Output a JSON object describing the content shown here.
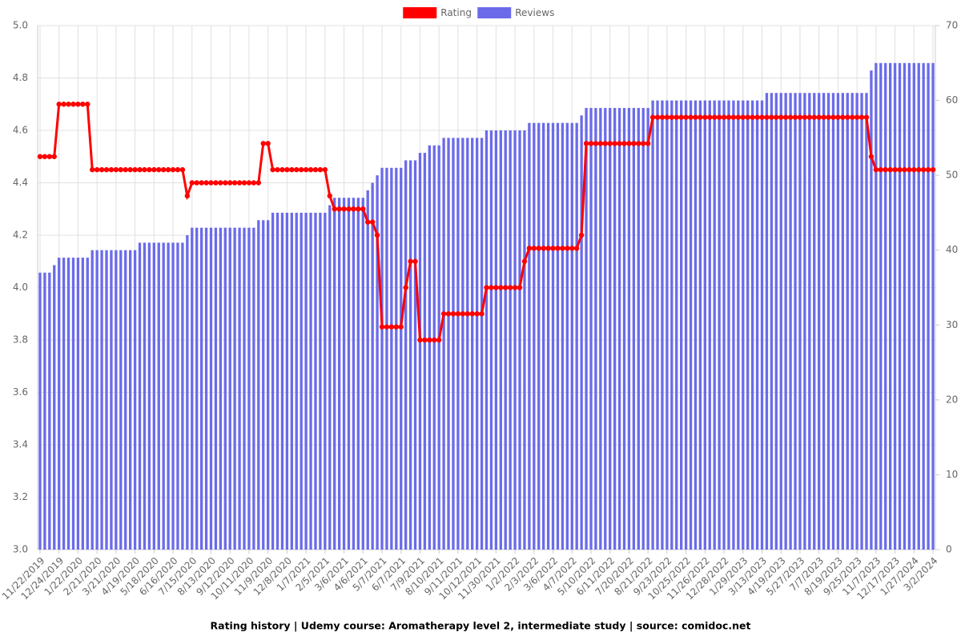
{
  "chart_data": {
    "type": "combo",
    "title": "Rating history | Udemy course: Aromatherapy level 2, intermediate study | source: comidoc.net",
    "legend": "top",
    "grid": true,
    "categories": [
      "11/22/2019",
      null,
      null,
      null,
      "12/24/2019",
      null,
      null,
      null,
      "1/22/2020",
      null,
      null,
      null,
      "2/21/2020",
      null,
      null,
      null,
      "3/21/2020",
      null,
      null,
      null,
      "4/19/2020",
      null,
      null,
      null,
      "5/18/2020",
      null,
      null,
      null,
      "6/16/2020",
      null,
      null,
      null,
      "7/15/2020",
      null,
      null,
      null,
      "8/13/2020",
      null,
      null,
      null,
      "9/12/2020",
      null,
      null,
      null,
      "10/11/2020",
      null,
      null,
      null,
      "11/9/2020",
      null,
      null,
      null,
      "12/8/2020",
      null,
      null,
      null,
      "1/7/2021",
      null,
      null,
      null,
      "2/5/2021",
      null,
      null,
      null,
      "3/6/2021",
      null,
      null,
      null,
      "4/6/2021",
      null,
      null,
      null,
      "5/7/2021",
      null,
      null,
      null,
      "6/7/2021",
      null,
      null,
      null,
      "7/9/2021",
      null,
      null,
      null,
      "8/10/2021",
      null,
      null,
      null,
      "9/11/2021",
      null,
      null,
      null,
      "10/12/2021",
      null,
      null,
      null,
      "11/30/2021",
      null,
      null,
      null,
      "1/2/2022",
      null,
      null,
      null,
      "2/3/2022",
      null,
      null,
      null,
      "3/6/2022",
      null,
      null,
      null,
      "4/7/2022",
      null,
      null,
      null,
      "5/10/2022",
      null,
      null,
      null,
      "6/11/2022",
      null,
      null,
      null,
      "7/20/2022",
      null,
      null,
      null,
      "8/21/2022",
      null,
      null,
      null,
      "9/23/2022",
      null,
      null,
      null,
      "10/25/2022",
      null,
      null,
      null,
      "11/26/2022",
      null,
      null,
      null,
      "12/28/2022",
      null,
      null,
      null,
      "1/29/2023",
      null,
      null,
      null,
      "3/13/2023",
      null,
      null,
      null,
      "4/19/2023",
      null,
      null,
      null,
      "5/27/2023",
      null,
      null,
      null,
      "7/7/2023",
      null,
      null,
      null,
      "8/19/2023",
      null,
      null,
      null,
      "9/25/2023",
      null,
      null,
      null,
      "11/7/2023",
      null,
      null,
      null,
      "12/17/2023",
      null,
      null,
      null,
      "1/27/2024",
      null,
      null,
      null,
      "3/2/2024"
    ],
    "series": [
      {
        "name": "Rating",
        "type": "line",
        "color": "#ff0000",
        "values": [
          4.5,
          4.5,
          4.5,
          4.5,
          4.7,
          4.7,
          4.7,
          4.7,
          4.7,
          4.7,
          4.7,
          4.45,
          4.45,
          4.45,
          4.45,
          4.45,
          4.45,
          4.45,
          4.45,
          4.45,
          4.45,
          4.45,
          4.45,
          4.45,
          4.45,
          4.45,
          4.45,
          4.45,
          4.45,
          4.45,
          4.45,
          4.35,
          4.4,
          4.4,
          4.4,
          4.4,
          4.4,
          4.4,
          4.4,
          4.4,
          4.4,
          4.4,
          4.4,
          4.4,
          4.4,
          4.4,
          4.4,
          4.55,
          4.55,
          4.45,
          4.45,
          4.45,
          4.45,
          4.45,
          4.45,
          4.45,
          4.45,
          4.45,
          4.45,
          4.45,
          4.45,
          4.35,
          4.3,
          4.3,
          4.3,
          4.3,
          4.3,
          4.3,
          4.3,
          4.25,
          4.25,
          4.2,
          3.85,
          3.85,
          3.85,
          3.85,
          3.85,
          4.0,
          4.1,
          4.1,
          3.8,
          3.8,
          3.8,
          3.8,
          3.8,
          3.9,
          3.9,
          3.9,
          3.9,
          3.9,
          3.9,
          3.9,
          3.9,
          3.9,
          4.0,
          4.0,
          4.0,
          4.0,
          4.0,
          4.0,
          4.0,
          4.0,
          4.1,
          4.15,
          4.15,
          4.15,
          4.15,
          4.15,
          4.15,
          4.15,
          4.15,
          4.15,
          4.15,
          4.15,
          4.2,
          4.55,
          4.55,
          4.55,
          4.55,
          4.55,
          4.55,
          4.55,
          4.55,
          4.55,
          4.55,
          4.55,
          4.55,
          4.55,
          4.55,
          4.65,
          4.65,
          4.65,
          4.65,
          4.65,
          4.65,
          4.65,
          4.65,
          4.65,
          4.65,
          4.65,
          4.65,
          4.65,
          4.65,
          4.65,
          4.65,
          4.65,
          4.65,
          4.65,
          4.65,
          4.65,
          4.65,
          4.65,
          4.65,
          4.65,
          4.65,
          4.65,
          4.65,
          4.65,
          4.65,
          4.65,
          4.65,
          4.65,
          4.65,
          4.65,
          4.65,
          4.65,
          4.65,
          4.65,
          4.65,
          4.65,
          4.65,
          4.65,
          4.65,
          4.65,
          4.65,
          4.5,
          4.45,
          4.45,
          4.45,
          4.45,
          4.45,
          4.45,
          4.45,
          4.45,
          4.45,
          4.45,
          4.45,
          4.45,
          4.45
        ]
      },
      {
        "name": "Reviews",
        "type": "bar",
        "axis": "y2",
        "color": "#6b6bea",
        "values": [
          37,
          37,
          37,
          38,
          39,
          39,
          39,
          39,
          39,
          39,
          39,
          40,
          40,
          40,
          40,
          40,
          40,
          40,
          40,
          40,
          40,
          41,
          41,
          41,
          41,
          41,
          41,
          41,
          41,
          41,
          41,
          42,
          43,
          43,
          43,
          43,
          43,
          43,
          43,
          43,
          43,
          43,
          43,
          43,
          43,
          43,
          44,
          44,
          44,
          45,
          45,
          45,
          45,
          45,
          45,
          45,
          45,
          45,
          45,
          45,
          45,
          46,
          47,
          47,
          47,
          47,
          47,
          47,
          47,
          48,
          49,
          50,
          51,
          51,
          51,
          51,
          51,
          52,
          52,
          52,
          53,
          53,
          54,
          54,
          54,
          55,
          55,
          55,
          55,
          55,
          55,
          55,
          55,
          55,
          56,
          56,
          56,
          56,
          56,
          56,
          56,
          56,
          56,
          57,
          57,
          57,
          57,
          57,
          57,
          57,
          57,
          57,
          57,
          57,
          58,
          59,
          59,
          59,
          59,
          59,
          59,
          59,
          59,
          59,
          59,
          59,
          59,
          59,
          59,
          60,
          60,
          60,
          60,
          60,
          60,
          60,
          60,
          60,
          60,
          60,
          60,
          60,
          60,
          60,
          60,
          60,
          60,
          60,
          60,
          60,
          60,
          60,
          60,
          61,
          61,
          61,
          61,
          61,
          61,
          61,
          61,
          61,
          61,
          61,
          61,
          61,
          61,
          61,
          61,
          61,
          61,
          61,
          61,
          61,
          61,
          64,
          65,
          65,
          65,
          65,
          65,
          65,
          65,
          65,
          65,
          65,
          65,
          65,
          65
        ]
      }
    ],
    "ylim": [
      3.0,
      5.0
    ],
    "yticks": [
      {
        "value": 3.0,
        "label": "3.0"
      },
      3.2,
      3.4,
      3.6,
      3.8,
      {
        "value": 4.0,
        "label": "4.0"
      },
      4.2,
      4.4,
      4.6,
      4.8,
      {
        "value": 5.0,
        "label": "5.0"
      }
    ],
    "y2lim": [
      0,
      70
    ],
    "y2ticks": [
      0,
      10,
      20,
      30,
      40,
      50,
      60,
      70
    ]
  }
}
